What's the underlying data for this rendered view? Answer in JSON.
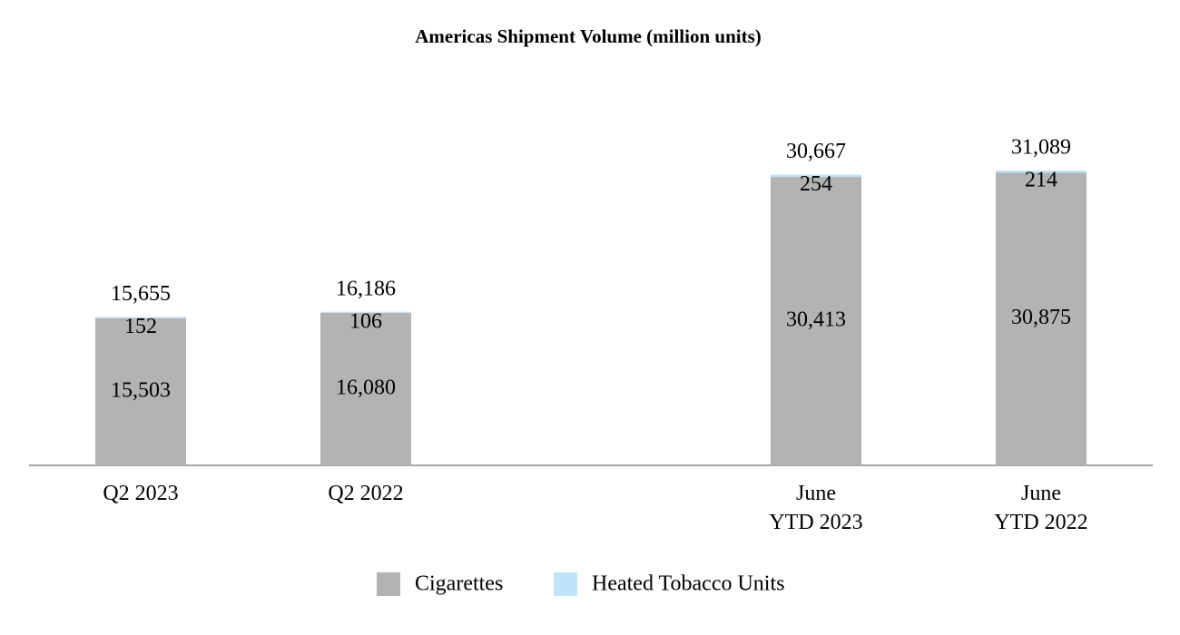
{
  "chart_data": {
    "type": "stacked_bar",
    "title": "Americas Shipment Volume (million units)",
    "categories": [
      "Q2 2023",
      "Q2 2022",
      null,
      "June\nYTD 2023",
      "June\nYTD 2022"
    ],
    "series": [
      {
        "name": "Cigarettes",
        "color": "#b3b3b3",
        "values": [
          15503,
          16080,
          null,
          30413,
          30875
        ],
        "value_labels": [
          "15,503",
          "16,080",
          null,
          "30,413",
          "30,875"
        ]
      },
      {
        "name": "Heated Tobacco Units",
        "color": "#bfe3f8",
        "values": [
          152,
          106,
          null,
          254,
          214
        ],
        "value_labels": [
          "152",
          "106",
          null,
          "254",
          "214"
        ]
      }
    ],
    "totals": [
      15655,
      16186,
      null,
      30667,
      31089
    ],
    "total_labels": [
      "15,655",
      "16,186",
      null,
      "30,667",
      "31,089"
    ]
  }
}
